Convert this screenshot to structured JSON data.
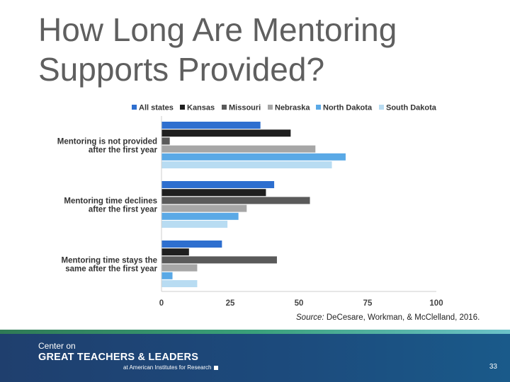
{
  "slide": {
    "title_line1": "How Long Are Mentoring",
    "title_line2": "Supports Provided?",
    "source_label": "Source:",
    "source_text": " DeCesare, Workman, & McClelland, 2016.",
    "page_number": "33"
  },
  "footer": {
    "logo_line1": "Center on",
    "logo_line2": "GREAT TEACHERS & LEADERS",
    "logo_line3": "at American Institutes for Research"
  },
  "chart_data": {
    "type": "bar",
    "orientation": "horizontal",
    "title": "",
    "xlabel": "",
    "ylabel": "",
    "xlim": [
      0,
      100
    ],
    "xticks": [
      0,
      25,
      50,
      75,
      100
    ],
    "grid": false,
    "legend_position": "top",
    "categories": [
      [
        "Mentoring is not provided",
        "after the first year"
      ],
      [
        "Mentoring time declines",
        "after the first year"
      ],
      [
        "Mentoring time stays the",
        "same after the first year"
      ]
    ],
    "series": [
      {
        "name": "All states",
        "color": "#2e6fcf",
        "values": [
          36,
          41,
          22
        ]
      },
      {
        "name": "Kansas",
        "color": "#1f1f1f",
        "values": [
          47,
          38,
          10
        ]
      },
      {
        "name": "Missouri",
        "color": "#5a5a5a",
        "values": [
          3,
          54,
          42
        ]
      },
      {
        "name": "Nebraska",
        "color": "#a6a6a6",
        "values": [
          56,
          31,
          13
        ]
      },
      {
        "name": "North Dakota",
        "color": "#5aa9e6",
        "values": [
          67,
          28,
          4
        ]
      },
      {
        "name": "South Dakota",
        "color": "#b8dcf2",
        "values": [
          62,
          24,
          13
        ]
      }
    ]
  }
}
